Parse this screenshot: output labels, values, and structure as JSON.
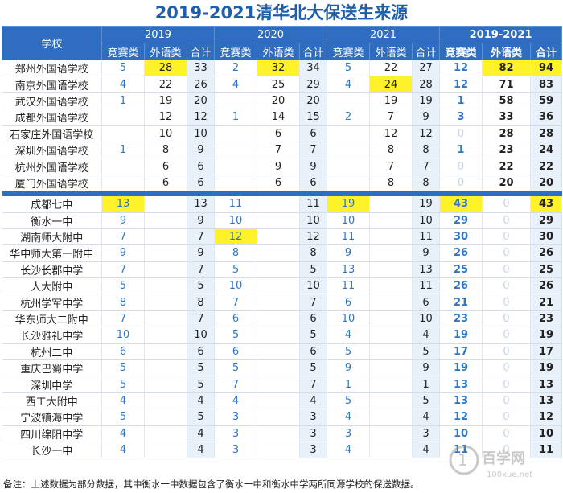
{
  "title": "2019-2021清华北大保送生来源",
  "note": "备注：上述数据为部分数据，其中衡水一中数据包含了衡水一中和衡水中学两所同源学校的保送数据。",
  "watermark": "100xue.net",
  "colors": {
    "header_bg": "#2e6dbf",
    "title": "#1f5fa8",
    "highlight": "#fff22a",
    "comp_text": "#2f76c4",
    "total_bg": "#e8f0fa"
  },
  "chart_data": {
    "type": "table",
    "title": "2019-2021清华北大保送生来源",
    "header": {
      "school": "学校",
      "years": [
        "2019",
        "2020",
        "2021",
        "2019-2021"
      ],
      "sub": [
        "竞赛类",
        "外语类",
        "合计"
      ]
    },
    "groups": [
      {
        "rows": [
          {
            "name": "郑州外国语学校",
            "y2019": [
              "5",
              "28",
              "33"
            ],
            "y2020": [
              "2",
              "32",
              "34"
            ],
            "y2021": [
              "5",
              "22",
              "27"
            ],
            "sum": [
              "12",
              "82",
              "94"
            ],
            "hl": [
              "y2019.1",
              "y2020.1",
              "sum.1",
              "sum.2"
            ]
          },
          {
            "name": "南京外国语学校",
            "y2019": [
              "4",
              "22",
              "26"
            ],
            "y2020": [
              "4",
              "25",
              "29"
            ],
            "y2021": [
              "4",
              "24",
              "28"
            ],
            "sum": [
              "12",
              "71",
              "83"
            ],
            "hl": [
              "y2021.1"
            ]
          },
          {
            "name": "武汉外国语学校",
            "y2019": [
              "1",
              "19",
              "20"
            ],
            "y2020": [
              "",
              "20",
              "20"
            ],
            "y2021": [
              "",
              "19",
              "19"
            ],
            "sum": [
              "1",
              "58",
              "59"
            ],
            "hl": []
          },
          {
            "name": "成都外国语学校",
            "y2019": [
              "",
              "12",
              "12"
            ],
            "y2020": [
              "1",
              "14",
              "15"
            ],
            "y2021": [
              "2",
              "7",
              "9"
            ],
            "sum": [
              "3",
              "33",
              "36"
            ],
            "hl": []
          },
          {
            "name": "石家庄外国语学校",
            "y2019": [
              "",
              "10",
              "10"
            ],
            "y2020": [
              "",
              "6",
              "6"
            ],
            "y2021": [
              "",
              "12",
              "12"
            ],
            "sum": [
              "0",
              "28",
              "28"
            ],
            "hl": []
          },
          {
            "name": "深圳外国语学校",
            "y2019": [
              "1",
              "8",
              "9"
            ],
            "y2020": [
              "",
              "7",
              "7"
            ],
            "y2021": [
              "",
              "8",
              "8"
            ],
            "sum": [
              "1",
              "23",
              "24"
            ],
            "hl": []
          },
          {
            "name": "杭州外国语学校",
            "y2019": [
              "",
              "6",
              "6"
            ],
            "y2020": [
              "",
              "9",
              "9"
            ],
            "y2021": [
              "",
              "7",
              "7"
            ],
            "sum": [
              "0",
              "22",
              "22"
            ],
            "hl": []
          },
          {
            "name": "厦门外国语学校",
            "y2019": [
              "",
              "6",
              "6"
            ],
            "y2020": [
              "",
              "6",
              "6"
            ],
            "y2021": [
              "",
              "8",
              "8"
            ],
            "sum": [
              "0",
              "20",
              "20"
            ],
            "hl": []
          }
        ]
      },
      {
        "rows": [
          {
            "name": "成都七中",
            "y2019": [
              "13",
              "",
              "13"
            ],
            "y2020": [
              "11",
              "",
              "11"
            ],
            "y2021": [
              "19",
              "",
              "19"
            ],
            "sum": [
              "43",
              "0",
              "43"
            ],
            "hl": [
              "y2019.0",
              "y2021.0",
              "sum.0",
              "sum.2"
            ]
          },
          {
            "name": "衡水一中",
            "y2019": [
              "9",
              "",
              "9"
            ],
            "y2020": [
              "10",
              "",
              "10"
            ],
            "y2021": [
              "10",
              "",
              "10"
            ],
            "sum": [
              "29",
              "0",
              "29"
            ],
            "hl": []
          },
          {
            "name": "湖南师大附中",
            "y2019": [
              "7",
              "",
              "7"
            ],
            "y2020": [
              "12",
              "",
              "12"
            ],
            "y2021": [
              "11",
              "",
              "11"
            ],
            "sum": [
              "30",
              "0",
              "30"
            ],
            "hl": [
              "y2020.0"
            ]
          },
          {
            "name": "华中师大第一附中",
            "y2019": [
              "9",
              "",
              "9"
            ],
            "y2020": [
              "8",
              "",
              "8"
            ],
            "y2021": [
              "9",
              "",
              "9"
            ],
            "sum": [
              "26",
              "0",
              "26"
            ],
            "hl": []
          },
          {
            "name": "长沙长郡中学",
            "y2019": [
              "7",
              "",
              "7"
            ],
            "y2020": [
              "5",
              "",
              "5"
            ],
            "y2021": [
              "13",
              "",
              "13"
            ],
            "sum": [
              "25",
              "0",
              "25"
            ],
            "hl": []
          },
          {
            "name": "人大附中",
            "y2019": [
              "5",
              "",
              "5"
            ],
            "y2020": [
              "10",
              "",
              "10"
            ],
            "y2021": [
              "11",
              "",
              "11"
            ],
            "sum": [
              "26",
              "0",
              "26"
            ],
            "hl": []
          },
          {
            "name": "杭州学军中学",
            "y2019": [
              "8",
              "",
              "8"
            ],
            "y2020": [
              "7",
              "",
              "7"
            ],
            "y2021": [
              "6",
              "",
              "6"
            ],
            "sum": [
              "21",
              "0",
              "21"
            ],
            "hl": []
          },
          {
            "name": "华东师大二附中",
            "y2019": [
              "7",
              "",
              "7"
            ],
            "y2020": [
              "6",
              "",
              "6"
            ],
            "y2021": [
              "10",
              "",
              "10"
            ],
            "sum": [
              "23",
              "0",
              "23"
            ],
            "hl": []
          },
          {
            "name": "长沙雅礼中学",
            "y2019": [
              "10",
              "",
              "10"
            ],
            "y2020": [
              "5",
              "",
              "5"
            ],
            "y2021": [
              "4",
              "",
              "4"
            ],
            "sum": [
              "19",
              "0",
              "19"
            ],
            "hl": []
          },
          {
            "name": "杭州二中",
            "y2019": [
              "6",
              "",
              "6"
            ],
            "y2020": [
              "6",
              "",
              "6"
            ],
            "y2021": [
              "5",
              "",
              "5"
            ],
            "sum": [
              "17",
              "0",
              "17"
            ],
            "hl": []
          },
          {
            "name": "重庆巴蜀中学",
            "y2019": [
              "5",
              "",
              "5"
            ],
            "y2020": [
              "5",
              "",
              "5"
            ],
            "y2021": [
              "9",
              "",
              "9"
            ],
            "sum": [
              "19",
              "0",
              "19"
            ],
            "hl": []
          },
          {
            "name": "深圳中学",
            "y2019": [
              "5",
              "",
              "5"
            ],
            "y2020": [
              "7",
              "",
              "7"
            ],
            "y2021": [
              "1",
              "",
              "1"
            ],
            "sum": [
              "13",
              "0",
              "13"
            ],
            "hl": []
          },
          {
            "name": "西工大附中",
            "y2019": [
              "4",
              "",
              "4"
            ],
            "y2020": [
              "4",
              "",
              "4"
            ],
            "y2021": [
              "5",
              "",
              "5"
            ],
            "sum": [
              "13",
              "0",
              "13"
            ],
            "hl": []
          },
          {
            "name": "宁波镇海中学",
            "y2019": [
              "5",
              "",
              "5"
            ],
            "y2020": [
              "3",
              "",
              "3"
            ],
            "y2021": [
              "4",
              "",
              "4"
            ],
            "sum": [
              "12",
              "0",
              "12"
            ],
            "hl": []
          },
          {
            "name": "四川绵阳中学",
            "y2019": [
              "4",
              "",
              "4"
            ],
            "y2020": [
              "3",
              "",
              "3"
            ],
            "y2021": [
              "3",
              "",
              "3"
            ],
            "sum": [
              "10",
              "0",
              "10"
            ],
            "hl": []
          },
          {
            "name": "长沙一中",
            "y2019": [
              "4",
              "",
              "4"
            ],
            "y2020": [
              "3",
              "",
              "3"
            ],
            "y2021": [
              "4",
              "",
              "4"
            ],
            "sum": [
              "11",
              "0",
              "11"
            ],
            "hl": []
          }
        ]
      }
    ]
  }
}
